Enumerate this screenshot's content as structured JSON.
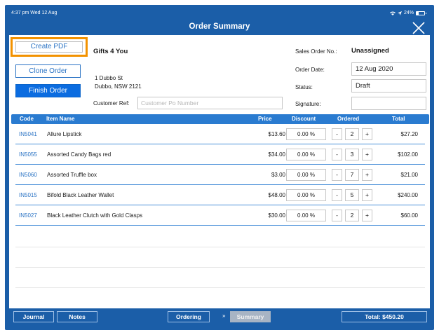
{
  "status_bar": {
    "time": "4:37 pm  Wed 12 Aug",
    "battery": "24%"
  },
  "title": "Order Summary",
  "actions": {
    "create_pdf": "Create PDF",
    "clone_order": "Clone Order",
    "finish_order": "Finish Order"
  },
  "customer": {
    "name": "Gifts 4 You",
    "address_line1": "1 Dubbo St",
    "address_line2": "Dubbo, NSW 2121",
    "ref_label": "Customer Ref:",
    "ref_value": "",
    "ref_placeholder": "Customer Po Number"
  },
  "order_info": {
    "sales_order_label": "Sales Order No.:",
    "sales_order_value": "Unassigned",
    "order_date_label": "Order Date:",
    "order_date_value": "12 Aug 2020",
    "status_label": "Status:",
    "status_value": "Draft",
    "signature_label": "Signature:",
    "signature_value": ""
  },
  "table": {
    "headers": {
      "code": "Code",
      "item_name": "Item Name",
      "price": "Price",
      "discount": "Discount",
      "ordered": "Ordered",
      "total": "Total"
    },
    "rows": [
      {
        "code": "IN5041",
        "name": "Allure Lipstick",
        "price": "$13.60",
        "discount": "0.00 %",
        "qty": "2",
        "total": "$27.20"
      },
      {
        "code": "IN5055",
        "name": "Assorted Candy Bags red",
        "price": "$34.00",
        "discount": "0.00 %",
        "qty": "3",
        "total": "$102.00"
      },
      {
        "code": "IN5060",
        "name": "Assorted Truffle box",
        "price": "$3.00",
        "discount": "0.00 %",
        "qty": "7",
        "total": "$21.00"
      },
      {
        "code": "IN5015",
        "name": "Bifold Black Leather Wallet",
        "price": "$48.00",
        "discount": "0.00 %",
        "qty": "5",
        "total": "$240.00"
      },
      {
        "code": "IN5027",
        "name": "Black Leather Clutch with Gold Clasps",
        "price": "$30.00",
        "discount": "0.00 %",
        "qty": "2",
        "total": "$60.00"
      }
    ],
    "minus": "-",
    "plus": "+"
  },
  "footer": {
    "journal": "Journal",
    "notes": "Notes",
    "ordering": "Ordering",
    "separator": "»",
    "summary": "Summary",
    "total": "Total: $450.20"
  },
  "colors": {
    "brand_blue": "#1b5ea8",
    "header_blue": "#2a7bd0",
    "highlight_orange": "#f39200"
  }
}
